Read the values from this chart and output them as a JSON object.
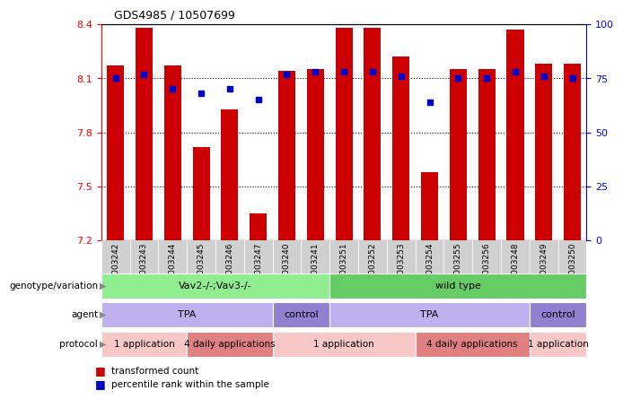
{
  "title": "GDS4985 / 10507699",
  "samples": [
    "GSM1003242",
    "GSM1003243",
    "GSM1003244",
    "GSM1003245",
    "GSM1003246",
    "GSM1003247",
    "GSM1003240",
    "GSM1003241",
    "GSM1003251",
    "GSM1003252",
    "GSM1003253",
    "GSM1003254",
    "GSM1003255",
    "GSM1003256",
    "GSM1003248",
    "GSM1003249",
    "GSM1003250"
  ],
  "bar_values": [
    8.17,
    8.38,
    8.17,
    7.72,
    7.93,
    7.35,
    8.14,
    8.15,
    8.38,
    8.38,
    8.22,
    7.58,
    8.15,
    8.15,
    8.37,
    8.18,
    8.18
  ],
  "dot_values": [
    75,
    77,
    70,
    68,
    70,
    65,
    77,
    78,
    78,
    78,
    76,
    64,
    75,
    75,
    78,
    76,
    75
  ],
  "ylim_left": [
    7.2,
    8.4
  ],
  "ylim_right": [
    0,
    100
  ],
  "yticks_left": [
    7.2,
    7.5,
    7.8,
    8.1,
    8.4
  ],
  "yticks_right": [
    0,
    25,
    50,
    75,
    100
  ],
  "hlines": [
    7.5,
    7.8,
    8.1
  ],
  "bar_color": "#cc0000",
  "dot_color": "#0000cc",
  "bar_width": 0.6,
  "genotype_groups": [
    {
      "label": "Vav2-/-;Vav3-/-",
      "start": 0,
      "end": 8,
      "color": "#90ee90"
    },
    {
      "label": "wild type",
      "start": 8,
      "end": 17,
      "color": "#66cc66"
    }
  ],
  "agent_groups": [
    {
      "label": "TPA",
      "start": 0,
      "end": 6,
      "color": "#c0b0f0"
    },
    {
      "label": "control",
      "start": 6,
      "end": 8,
      "color": "#9080d0"
    },
    {
      "label": "TPA",
      "start": 8,
      "end": 15,
      "color": "#c0b0f0"
    },
    {
      "label": "control",
      "start": 15,
      "end": 17,
      "color": "#9080d0"
    }
  ],
  "protocol_groups": [
    {
      "label": "1 application",
      "start": 0,
      "end": 3,
      "color": "#f8c8c8"
    },
    {
      "label": "4 daily applications",
      "start": 3,
      "end": 6,
      "color": "#e08080"
    },
    {
      "label": "1 application",
      "start": 6,
      "end": 11,
      "color": "#f8c8c8"
    },
    {
      "label": "4 daily applications",
      "start": 11,
      "end": 15,
      "color": "#e08080"
    },
    {
      "label": "1 application",
      "start": 15,
      "end": 17,
      "color": "#f8c8c8"
    }
  ],
  "row_labels": [
    "genotype/variation",
    "agent",
    "protocol"
  ],
  "legend_items": [
    {
      "label": "transformed count",
      "color": "#cc0000"
    },
    {
      "label": "percentile rank within the sample",
      "color": "#0000cc"
    }
  ],
  "xtick_bg": "#d0d0d0",
  "left_label_color": "#555555"
}
